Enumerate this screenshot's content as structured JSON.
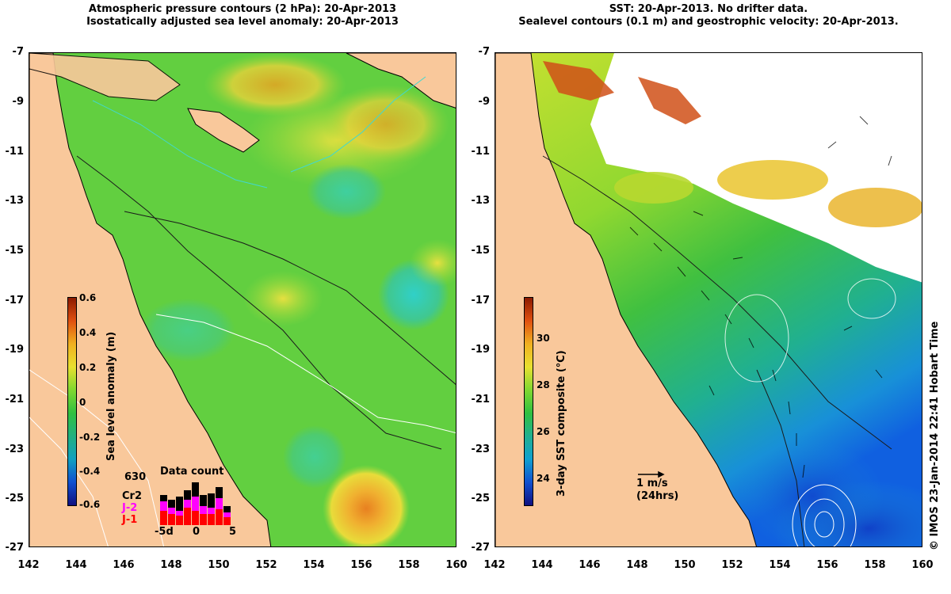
{
  "left_panel": {
    "title_line1": "Atmospheric pressure contours (2 hPa): 20-Apr-2013",
    "title_line2": "Isostatically adjusted sea level anomaly: 20-Apr-2013",
    "colorbar": {
      "label": "Sea level anomaly (m)",
      "ticks": [
        "0.6",
        "0.4",
        "0.2",
        "0",
        "-0.2",
        "-0.4",
        "-0.6"
      ]
    },
    "data_count": {
      "title": "Data count",
      "total": "630",
      "sat1": "Cr2",
      "sat2": "J-2",
      "sat3": "J-1",
      "x_ticks": [
        "-5d",
        "0",
        "5"
      ],
      "sat2_color": "#ff00ff",
      "sat3_color": "#ff0000"
    }
  },
  "right_panel": {
    "title_line1": "SST: 20-Apr-2013. No drifter data.",
    "title_line2": "Sealevel contours (0.1 m) and geostrophic velocity: 20-Apr-2013.",
    "colorbar": {
      "label": "3-day SST composite (°C)",
      "ticks": [
        "30",
        "28",
        "26",
        "24"
      ]
    },
    "scale_arrow_label": "1 m/s",
    "scale_arrow_sub": "(24hrs)"
  },
  "axes": {
    "y_ticks": [
      "-7",
      "-9",
      "-11",
      "-13",
      "-15",
      "-17",
      "-19",
      "-21",
      "-23",
      "-25",
      "-27"
    ],
    "x_ticks": [
      "142",
      "144",
      "146",
      "148",
      "150",
      "152",
      "154",
      "156",
      "158",
      "160"
    ]
  },
  "credit": "© IMOS 23-Jan-2014 22:41 Hobart Time",
  "colors": {
    "land": "#f9c89b",
    "ocean_green": "#5fcf3c",
    "sst_blue": "#1b7fd8"
  }
}
